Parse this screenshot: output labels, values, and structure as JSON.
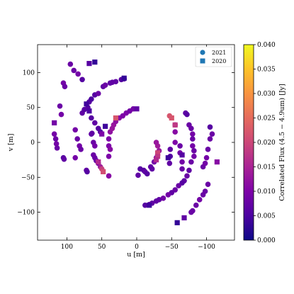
{
  "chart_data": {
    "type": "scatter",
    "title": "",
    "xlabel": "u [m]",
    "ylabel": "v [m]",
    "xlim": [
      142,
      -140
    ],
    "ylim": [
      -140,
      140
    ],
    "xticks": [
      100,
      50,
      0,
      -50,
      -100
    ],
    "yticks": [
      100,
      50,
      0,
      -50,
      -100
    ],
    "grid": false,
    "legend": {
      "placement": "top-right",
      "entries": [
        {
          "label": "2021",
          "marker": "circle"
        },
        {
          "label": "2020",
          "marker": "square"
        }
      ]
    },
    "colorbar": {
      "label": "Correlated Flux (4.5 − 4.9um) [Jy]",
      "min": 0.0,
      "max": 0.04,
      "ticks": [
        "0.000",
        "0.005",
        "0.010",
        "0.015",
        "0.020",
        "0.025",
        "0.030",
        "0.035",
        "0.040"
      ],
      "colormap": "plasma"
    },
    "series": [
      {
        "name": "2021",
        "marker": "circle",
        "points": [
          {
            "u": 95,
            "v": 112,
            "f": 0.008
          },
          {
            "u": 90,
            "v": 103,
            "f": 0.008
          },
          {
            "u": 84,
            "v": 98,
            "f": 0.009
          },
          {
            "u": 78,
            "v": 90,
            "f": 0.006
          },
          {
            "u": 105,
            "v": 85,
            "f": 0.009
          },
          {
            "u": 103,
            "v": 80,
            "f": 0.008
          },
          {
            "u": 110,
            "v": 52,
            "f": 0.008
          },
          {
            "u": 108,
            "v": 40,
            "f": 0.009
          },
          {
            "u": 118,
            "v": 12,
            "f": 0.009
          },
          {
            "u": 116,
            "v": 5,
            "f": 0.008
          },
          {
            "u": 115,
            "v": -2,
            "f": 0.009
          },
          {
            "u": 114,
            "v": -8,
            "f": 0.008
          },
          {
            "u": 105,
            "v": -22,
            "f": 0.006
          },
          {
            "u": 104,
            "v": -24,
            "f": 0.007
          },
          {
            "u": 88,
            "v": -22,
            "f": 0.009
          },
          {
            "u": 72,
            "v": -40,
            "f": 0.007
          },
          {
            "u": 71,
            "v": -42,
            "f": 0.006
          },
          {
            "u": 88,
            "v": 18,
            "f": 0.009
          },
          {
            "u": 85,
            "v": 5,
            "f": 0.008
          },
          {
            "u": 82,
            "v": -5,
            "f": 0.009
          },
          {
            "u": 80,
            "v": -10,
            "f": 0.008
          },
          {
            "u": 78,
            "v": 42,
            "f": 0.007
          },
          {
            "u": 75,
            "v": 47,
            "f": 0.006
          },
          {
            "u": 70,
            "v": 50,
            "f": 0.006
          },
          {
            "u": 68,
            "v": 58,
            "f": 0.006
          },
          {
            "u": 65,
            "v": 62,
            "f": 0.005
          },
          {
            "u": 60,
            "v": 68,
            "f": 0.006
          },
          {
            "u": 55,
            "v": 70,
            "f": 0.008
          },
          {
            "u": 48,
            "v": 80,
            "f": 0.007
          },
          {
            "u": 45,
            "v": 82,
            "f": 0.008
          },
          {
            "u": 38,
            "v": 85,
            "f": 0.007
          },
          {
            "u": 35,
            "v": 86,
            "f": 0.007
          },
          {
            "u": 30,
            "v": 87,
            "f": 0.007
          },
          {
            "u": 22,
            "v": 90,
            "f": 0.006
          },
          {
            "u": 18,
            "v": 91,
            "f": 0.007
          },
          {
            "u": 65,
            "v": 35,
            "f": 0.006
          },
          {
            "u": 60,
            "v": 28,
            "f": 0.007
          },
          {
            "u": 55,
            "v": 20,
            "f": 0.006
          },
          {
            "u": 52,
            "v": 15,
            "f": 0.006
          },
          {
            "u": 64,
            "v": 13,
            "f": 0.007
          },
          {
            "u": 65,
            "v": 12,
            "f": 0.007
          },
          {
            "u": 62,
            "v": -18,
            "f": 0.008
          },
          {
            "u": 60,
            "v": -22,
            "f": 0.008
          },
          {
            "u": 58,
            "v": -26,
            "f": 0.008
          },
          {
            "u": 55,
            "v": -30,
            "f": 0.009
          },
          {
            "u": 52,
            "v": -35,
            "f": 0.014
          },
          {
            "u": 50,
            "v": -38,
            "f": 0.019
          },
          {
            "u": 62,
            "v": 0,
            "f": 0.008
          },
          {
            "u": 60,
            "v": -5,
            "f": 0.009
          },
          {
            "u": 40,
            "v": 5,
            "f": 0.01
          },
          {
            "u": 40,
            "v": -5,
            "f": 0.01
          },
          {
            "u": 38,
            "v": -10,
            "f": 0.011
          },
          {
            "u": 40,
            "v": -20,
            "f": 0.01
          },
          {
            "u": 38,
            "v": 15,
            "f": 0.012
          },
          {
            "u": 35,
            "v": 20,
            "f": 0.013
          },
          {
            "u": 33,
            "v": 25,
            "f": 0.013
          },
          {
            "u": 30,
            "v": 30,
            "f": 0.012
          },
          {
            "u": 25,
            "v": 35,
            "f": 0.011
          },
          {
            "u": 20,
            "v": 38,
            "f": 0.01
          },
          {
            "u": 15,
            "v": 42,
            "f": 0.01
          },
          {
            "u": 10,
            "v": 45,
            "f": 0.009
          },
          {
            "u": 5,
            "v": 48,
            "f": 0.009
          },
          {
            "u": 40,
            "v": -48,
            "f": 0.011
          },
          {
            "u": -5,
            "v": -38,
            "f": 0.006
          },
          {
            "u": -10,
            "v": -40,
            "f": 0.006
          },
          {
            "u": -12,
            "v": -42,
            "f": 0.007
          },
          {
            "u": -15,
            "v": -45,
            "f": 0.006
          },
          {
            "u": -2,
            "v": -47,
            "f": 0.007
          },
          {
            "u": -20,
            "v": -35,
            "f": 0.007
          },
          {
            "u": -22,
            "v": -38,
            "f": 0.007
          },
          {
            "u": -25,
            "v": -28,
            "f": 0.009
          },
          {
            "u": -28,
            "v": -22,
            "f": 0.011
          },
          {
            "u": -30,
            "v": -18,
            "f": 0.012
          },
          {
            "u": -32,
            "v": -12,
            "f": 0.013
          },
          {
            "u": -30,
            "v": -5,
            "f": 0.014
          },
          {
            "u": -28,
            "v": 0,
            "f": 0.013
          },
          {
            "u": -47,
            "v": 38,
            "f": 0.022
          },
          {
            "u": -48,
            "v": -10,
            "f": 0.007
          },
          {
            "u": -48,
            "v": -20,
            "f": 0.006
          },
          {
            "u": -47,
            "v": -30,
            "f": 0.007
          },
          {
            "u": -55,
            "v": 0,
            "f": 0.01
          },
          {
            "u": -55,
            "v": 15,
            "f": 0.011
          },
          {
            "u": -55,
            "v": 25,
            "f": 0.012
          },
          {
            "u": -62,
            "v": -5,
            "f": 0.008
          },
          {
            "u": -62,
            "v": -15,
            "f": 0.009
          },
          {
            "u": -65,
            "v": -28,
            "f": 0.009
          },
          {
            "u": -65,
            "v": -38,
            "f": 0.008
          },
          {
            "u": -70,
            "v": 42,
            "f": 0.007
          },
          {
            "u": -72,
            "v": 40,
            "f": 0.006
          },
          {
            "u": -75,
            "v": 25,
            "f": 0.008
          },
          {
            "u": -78,
            "v": 20,
            "f": 0.008
          },
          {
            "u": -80,
            "v": 12,
            "f": 0.009
          },
          {
            "u": -80,
            "v": 5,
            "f": 0.008
          },
          {
            "u": -80,
            "v": -5,
            "f": 0.009
          },
          {
            "u": -82,
            "v": -12,
            "f": 0.008
          },
          {
            "u": -82,
            "v": -20,
            "f": 0.009
          },
          {
            "u": -78,
            "v": -28,
            "f": 0.008
          },
          {
            "u": -75,
            "v": -40,
            "f": 0.007
          },
          {
            "u": -72,
            "v": -48,
            "f": 0.008
          },
          {
            "u": -68,
            "v": -55,
            "f": 0.007
          },
          {
            "u": -65,
            "v": -58,
            "f": 0.006
          },
          {
            "u": -60,
            "v": -62,
            "f": 0.008
          },
          {
            "u": -55,
            "v": -68,
            "f": 0.008
          },
          {
            "u": -50,
            "v": -72,
            "f": 0.007
          },
          {
            "u": -45,
            "v": -75,
            "f": 0.009
          },
          {
            "u": -38,
            "v": -80,
            "f": 0.009
          },
          {
            "u": -32,
            "v": -82,
            "f": 0.007
          },
          {
            "u": -28,
            "v": -84,
            "f": 0.007
          },
          {
            "u": -22,
            "v": -87,
            "f": 0.007
          },
          {
            "u": -18,
            "v": -89,
            "f": 0.008
          },
          {
            "u": -12,
            "v": -90,
            "f": 0.006
          },
          {
            "u": -95,
            "v": -35,
            "f": 0.008
          },
          {
            "u": -98,
            "v": -30,
            "f": 0.009
          },
          {
            "u": -100,
            "v": -22,
            "f": 0.009
          },
          {
            "u": -102,
            "v": -10,
            "f": 0.008
          },
          {
            "u": -105,
            "v": 5,
            "f": 0.008
          },
          {
            "u": -108,
            "v": 12,
            "f": 0.008
          },
          {
            "u": -105,
            "v": 22,
            "f": 0.006
          },
          {
            "u": -102,
            "v": -60,
            "f": 0.008
          },
          {
            "u": -98,
            "v": -70,
            "f": 0.008
          },
          {
            "u": -95,
            "v": -75,
            "f": 0.008
          },
          {
            "u": -90,
            "v": -82,
            "f": 0.009
          },
          {
            "u": -85,
            "v": -90,
            "f": 0.008
          },
          {
            "u": -80,
            "v": -98,
            "f": 0.008
          },
          {
            "u": -78,
            "v": -100,
            "f": 0.008
          }
        ]
      },
      {
        "name": "2020",
        "marker": "square",
        "points": [
          {
            "u": 60,
            "v": 115,
            "f": 0.003
          },
          {
            "u": 68,
            "v": 113,
            "f": 0.006
          },
          {
            "u": 118,
            "v": 28,
            "f": 0.009
          },
          {
            "u": 72,
            "v": 55,
            "f": 0.004
          },
          {
            "u": 68,
            "v": 45,
            "f": 0.005
          },
          {
            "u": 45,
            "v": 23,
            "f": 0.004
          },
          {
            "u": 50,
            "v": 12,
            "f": 0.01
          },
          {
            "u": 30,
            "v": 35,
            "f": 0.022
          },
          {
            "u": 18,
            "v": 92,
            "f": 0.003
          },
          {
            "u": 0,
            "v": 48,
            "f": 0.007
          },
          {
            "u": 55,
            "v": -28,
            "f": 0.016
          },
          {
            "u": 48,
            "v": -42,
            "f": 0.021
          },
          {
            "u": -30,
            "v": -15,
            "f": 0.02
          },
          {
            "u": -30,
            "v": -20,
            "f": 0.018
          },
          {
            "u": -28,
            "v": -25,
            "f": 0.016
          },
          {
            "u": -50,
            "v": 35,
            "f": 0.022
          },
          {
            "u": -55,
            "v": 25,
            "f": 0.018
          },
          {
            "u": -45,
            "v": -22,
            "f": 0.004
          },
          {
            "u": -65,
            "v": -18,
            "f": 0.006
          },
          {
            "u": -115,
            "v": -28,
            "f": 0.011
          },
          {
            "u": -18,
            "v": -90,
            "f": 0.004
          },
          {
            "u": -58,
            "v": -115,
            "f": 0.003
          },
          {
            "u": -68,
            "v": -108,
            "f": 0.007
          }
        ]
      }
    ]
  }
}
